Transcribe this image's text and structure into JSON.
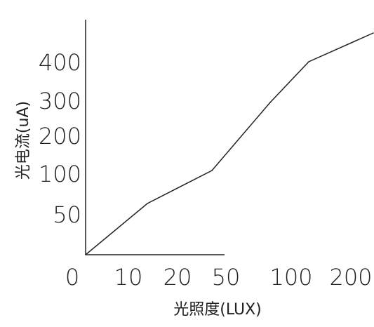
{
  "chart_data": {
    "type": "line",
    "title": "",
    "xlabel": "光照度(LUX)",
    "ylabel": "光电流(uA)",
    "x_tick_labels": [
      "0",
      "10",
      "20",
      "50",
      "100",
      "200"
    ],
    "y_tick_labels": [
      "50",
      "100",
      "200",
      "300",
      "400"
    ],
    "x_scale": "non-linear (labeled ticks)",
    "y_scale": "non-linear (labeled ticks)",
    "grid": false,
    "series": [
      {
        "x": [
          0,
          10,
          20,
          50,
          100,
          200
        ],
        "y": [
          0,
          60,
          110,
          300,
          390,
          460
        ]
      }
    ]
  }
}
